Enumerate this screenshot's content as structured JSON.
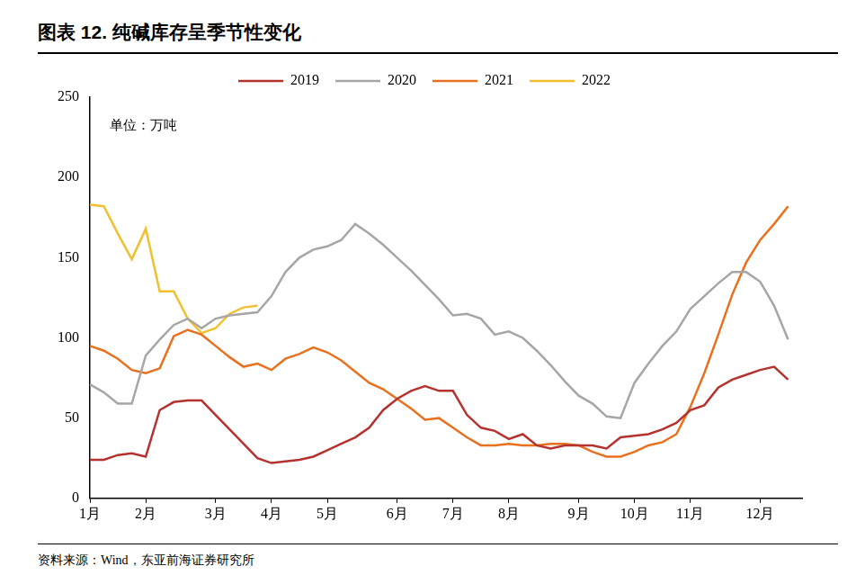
{
  "chart_data": {
    "type": "line",
    "title": "图表 12. 纯碱库存呈季节性变化",
    "annotation": "单位：万吨",
    "source": "资料来源：Wind，东亚前海证券研究所",
    "categories": [
      "1月",
      null,
      null,
      null,
      "2月",
      null,
      null,
      null,
      null,
      "3月",
      null,
      null,
      null,
      "4月",
      null,
      null,
      null,
      "5月",
      null,
      null,
      null,
      null,
      "6月",
      null,
      null,
      null,
      "7月",
      null,
      null,
      null,
      "8月",
      null,
      null,
      null,
      null,
      "9月",
      null,
      null,
      null,
      "10月",
      null,
      null,
      null,
      "11月",
      null,
      null,
      null,
      null,
      "12月",
      null,
      null,
      null
    ],
    "series": [
      {
        "name": "2019",
        "color": "#b5332e",
        "values": [
          24,
          24,
          27,
          28,
          26,
          55,
          60,
          61,
          61,
          52,
          43,
          34,
          25,
          22,
          23,
          24,
          26,
          30,
          34,
          38,
          44,
          55,
          62,
          67,
          70,
          67,
          67,
          52,
          44,
          42,
          37,
          40,
          33,
          31,
          33,
          33,
          33,
          31,
          38,
          39,
          40,
          43,
          47,
          55,
          58,
          69,
          74,
          77,
          80,
          82,
          74,
          null
        ]
      },
      {
        "name": "2020",
        "color": "#a6a6a6",
        "values": [
          71,
          66,
          59,
          59,
          89,
          99,
          108,
          112,
          106,
          112,
          114,
          115,
          116,
          126,
          141,
          150,
          155,
          157,
          161,
          171,
          165,
          158,
          150,
          142,
          133,
          124,
          114,
          115,
          112,
          102,
          104,
          100,
          92,
          83,
          73,
          64,
          59,
          51,
          50,
          72,
          84,
          95,
          104,
          118,
          126,
          134,
          141,
          141,
          135,
          120,
          99,
          null
        ]
      },
      {
        "name": "2021",
        "color": "#e8711f",
        "values": [
          95,
          92,
          87,
          80,
          78,
          81,
          101,
          105,
          102,
          95,
          88,
          82,
          84,
          80,
          87,
          90,
          94,
          91,
          86,
          79,
          72,
          68,
          62,
          56,
          49,
          50,
          44,
          38,
          33,
          33,
          34,
          33,
          33,
          34,
          34,
          33,
          29,
          26,
          26,
          29,
          33,
          35,
          40,
          57,
          78,
          102,
          127,
          147,
          161,
          171,
          182,
          null
        ]
      },
      {
        "name": "2022",
        "color": "#f0c02f",
        "values": [
          183,
          182,
          165,
          149,
          168,
          129,
          129,
          112,
          103,
          106,
          115,
          119,
          120,
          null,
          null,
          null,
          null,
          null,
          null,
          null,
          null,
          null,
          null,
          null,
          null,
          null,
          null,
          null,
          null,
          null,
          null,
          null,
          null,
          null,
          null,
          null,
          null,
          null,
          null,
          null,
          null,
          null,
          null,
          null,
          null,
          null,
          null,
          null,
          null,
          null,
          null,
          null
        ]
      }
    ],
    "ylim": [
      0,
      250
    ],
    "yticks": [
      0,
      50,
      100,
      150,
      200,
      250
    ],
    "grid": false,
    "legend": "top"
  }
}
